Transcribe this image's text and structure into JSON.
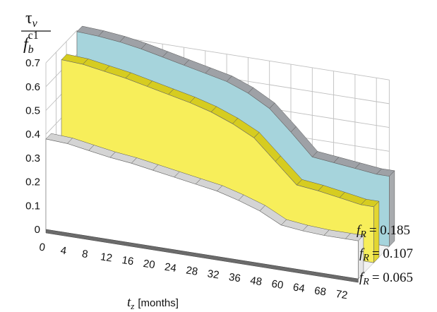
{
  "chart_data": {
    "type": "area",
    "subtype": "3d-ribbon",
    "ylabel_num": "τ",
    "ylabel_num_sub": "v",
    "ylabel_den": "f",
    "ylabel_den_sub": "b",
    "ylabel_den_sup": "c1",
    "xlabel_main": "t",
    "xlabel_sub": "z",
    "xlabel_units": "[months]",
    "categories": [
      "0",
      "4",
      "8",
      "12",
      "16",
      "20",
      "24",
      "28",
      "32",
      "36",
      "48",
      "60",
      "64",
      "68",
      "72"
    ],
    "y_ticks": [
      "0",
      "0.1",
      "0.2",
      "0.3",
      "0.4",
      "0.5",
      "0.6",
      "0.7"
    ],
    "ylim": [
      0,
      0.7
    ],
    "grid": true,
    "series": [
      {
        "name": "f_R = 0.065",
        "label_var": "f",
        "label_sub": "R",
        "label_val": "= 0.065",
        "color_face": "#ffffff",
        "color_top": "#d4d4d4",
        "values": [
          0.38,
          0.375,
          0.36,
          0.345,
          0.335,
          0.32,
          0.305,
          0.29,
          0.275,
          0.25,
          0.22,
          0.175,
          0.165,
          0.16,
          0.16
        ]
      },
      {
        "name": "f_R = 0.107",
        "label_var": "f",
        "label_sub": "R",
        "label_val": "= 0.107",
        "color_face": "#f7ee5a",
        "color_top": "#d6cc20",
        "values": [
          0.645,
          0.64,
          0.625,
          0.61,
          0.59,
          0.57,
          0.55,
          0.525,
          0.49,
          0.445,
          0.36,
          0.275,
          0.265,
          0.25,
          0.235
        ]
      },
      {
        "name": "f_R = 0.185",
        "label_var": "f",
        "label_sub": "R",
        "label_val": "= 0.185",
        "color_face": "#a6d4dc",
        "color_top": "#9ea1a6",
        "values": [
          0.695,
          0.69,
          0.68,
          0.665,
          0.645,
          0.625,
          0.605,
          0.585,
          0.55,
          0.5,
          0.415,
          0.325,
          0.315,
          0.305,
          0.295
        ]
      }
    ]
  }
}
